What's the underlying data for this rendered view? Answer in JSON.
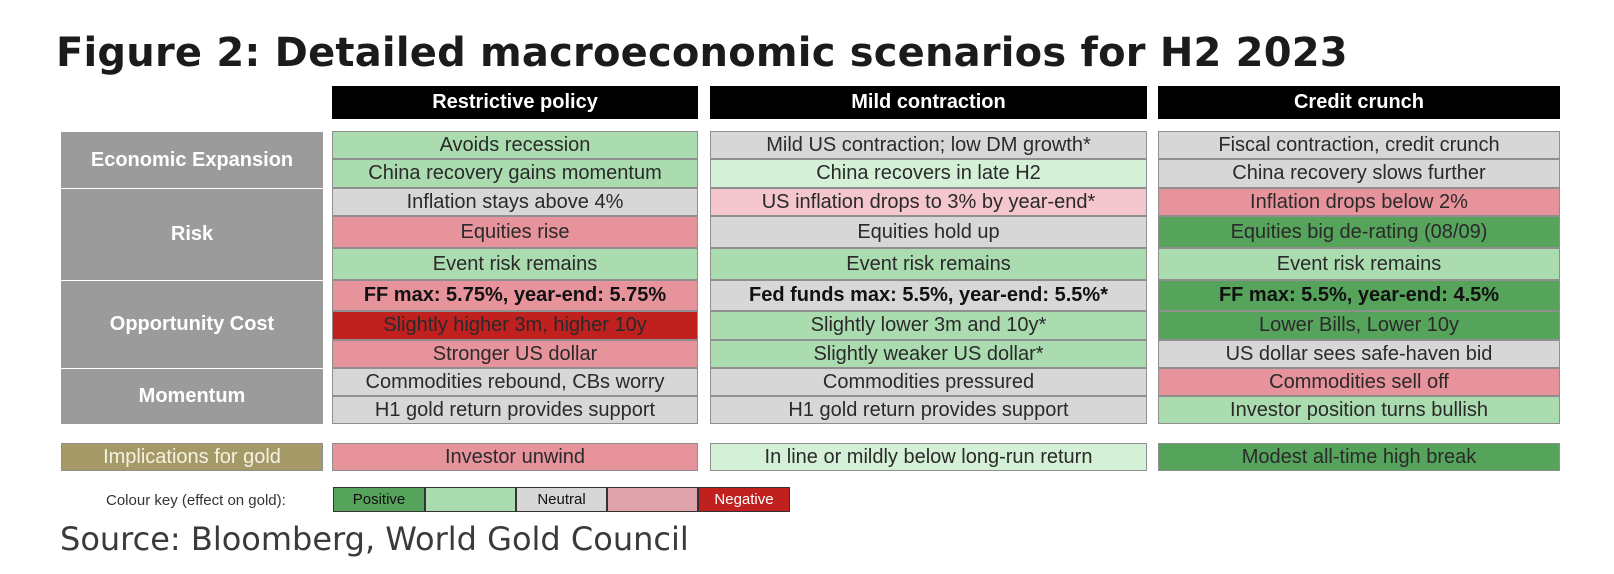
{
  "title": "Figure 2: Detailed macroeconomic scenarios for H2 2023",
  "columns": [
    "Restrictive policy",
    "Mild contraction",
    "Credit crunch"
  ],
  "row_groups": [
    "Economic Expansion",
    "Risk",
    "Opportunity Cost",
    "Momentum"
  ],
  "rows": [
    {
      "cells": [
        {
          "text": "Avoids recession",
          "effect": "light-positive"
        },
        {
          "text": "Mild US contraction; low DM growth*",
          "effect": "neutral"
        },
        {
          "text": "Fiscal contraction, credit crunch",
          "effect": "neutral"
        }
      ]
    },
    {
      "cells": [
        {
          "text": "China recovery gains momentum",
          "effect": "light-positive"
        },
        {
          "text": "China recovers in late H2",
          "effect": "faint-positive"
        },
        {
          "text": "China recovery slows further",
          "effect": "neutral"
        }
      ]
    },
    {
      "cells": [
        {
          "text": "Inflation stays above 4%",
          "effect": "neutral"
        },
        {
          "text": "US inflation drops to 3% by year-end*",
          "effect": "faint-negative"
        },
        {
          "text": "Inflation drops below 2%",
          "effect": "light-negative"
        }
      ]
    },
    {
      "cells": [
        {
          "text": "Equities rise",
          "effect": "light-negative"
        },
        {
          "text": "Equities hold up",
          "effect": "neutral"
        },
        {
          "text": "Equities big de-rating (08/09)",
          "effect": "positive"
        }
      ]
    },
    {
      "cells": [
        {
          "text": "Event risk remains",
          "effect": "light-positive"
        },
        {
          "text": "Event risk remains",
          "effect": "light-positive"
        },
        {
          "text": "Event risk remains",
          "effect": "light-positive"
        }
      ]
    },
    {
      "cells": [
        {
          "text": "FF max: 5.75%, year-end: 5.75%",
          "effect": "light-negative",
          "bold": true
        },
        {
          "text": "Fed funds max: 5.5%, year-end: 5.5%*",
          "effect": "neutral",
          "bold": true
        },
        {
          "text": "FF max: 5.5%, year-end: 4.5%",
          "effect": "positive",
          "bold": true
        }
      ]
    },
    {
      "cells": [
        {
          "text": "Slightly higher 3m, higher 10y",
          "effect": "negative"
        },
        {
          "text": "Slightly lower 3m and 10y*",
          "effect": "light-positive"
        },
        {
          "text": "Lower Bills, Lower 10y",
          "effect": "positive"
        }
      ]
    },
    {
      "cells": [
        {
          "text": "Stronger US dollar",
          "effect": "light-negative"
        },
        {
          "text": "Slightly weaker US dollar*",
          "effect": "light-positive"
        },
        {
          "text": "US dollar sees safe-haven bid",
          "effect": "neutral"
        }
      ]
    },
    {
      "cells": [
        {
          "text": "Commodities rebound, CBs worry",
          "effect": "neutral"
        },
        {
          "text": "Commodities pressured",
          "effect": "neutral"
        },
        {
          "text": "Commodities sell off",
          "effect": "light-negative"
        }
      ]
    },
    {
      "cells": [
        {
          "text": "H1 gold return provides support",
          "effect": "neutral"
        },
        {
          "text": "H1 gold return provides support",
          "effect": "neutral"
        },
        {
          "text": "Investor position turns bullish",
          "effect": "light-positive"
        }
      ]
    }
  ],
  "implications": {
    "label": "Implications for gold",
    "cells": [
      {
        "text": "Investor unwind",
        "effect": "light-negative"
      },
      {
        "text": "In line or mildly below long-run return",
        "effect": "faint-positive"
      },
      {
        "text": "Modest all-time high break",
        "effect": "positive"
      }
    ]
  },
  "colour_key": {
    "label": "Colour key (effect on gold):",
    "items": [
      {
        "text": "Positive",
        "color": "#56a35b"
      },
      {
        "text": "",
        "color": "#abdcb0"
      },
      {
        "text": "Neutral",
        "color": "#d7d7d7"
      },
      {
        "text": "",
        "color": "#dea3ab"
      },
      {
        "text": "Negative",
        "color": "#c0201e"
      }
    ]
  },
  "source": "Source: Bloomberg, World Gold Council"
}
